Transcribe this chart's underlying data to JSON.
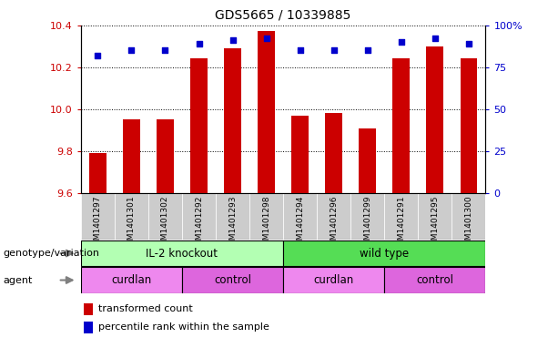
{
  "title": "GDS5665 / 10339885",
  "samples": [
    "GSM1401297",
    "GSM1401301",
    "GSM1401302",
    "GSM1401292",
    "GSM1401293",
    "GSM1401298",
    "GSM1401294",
    "GSM1401296",
    "GSM1401299",
    "GSM1401291",
    "GSM1401295",
    "GSM1401300"
  ],
  "transformed_count": [
    9.79,
    9.95,
    9.95,
    10.24,
    10.29,
    10.37,
    9.97,
    9.98,
    9.91,
    10.24,
    10.3,
    10.24
  ],
  "percentile_rank": [
    82,
    85,
    85,
    89,
    91,
    92,
    85,
    85,
    85,
    90,
    92,
    89
  ],
  "ylim_left": [
    9.6,
    10.4
  ],
  "ylim_right": [
    0,
    100
  ],
  "yticks_left": [
    9.6,
    9.8,
    10.0,
    10.2,
    10.4
  ],
  "yticks_right": [
    0,
    25,
    50,
    75,
    100
  ],
  "bar_color": "#cc0000",
  "dot_color": "#0000cc",
  "bar_base": 9.6,
  "genotype_groups": [
    {
      "label": "IL-2 knockout",
      "start": 0,
      "end": 6,
      "color": "#b3ffb3"
    },
    {
      "label": "wild type",
      "start": 6,
      "end": 12,
      "color": "#55dd55"
    }
  ],
  "agent_groups": [
    {
      "label": "curdlan",
      "start": 0,
      "end": 3,
      "color": "#ee88ee"
    },
    {
      "label": "control",
      "start": 3,
      "end": 6,
      "color": "#dd66dd"
    },
    {
      "label": "curdlan",
      "start": 6,
      "end": 9,
      "color": "#ee88ee"
    },
    {
      "label": "control",
      "start": 9,
      "end": 12,
      "color": "#dd66dd"
    }
  ],
  "legend_bar_label": "transformed count",
  "legend_dot_label": "percentile rank within the sample",
  "genotype_label": "genotype/variation",
  "agent_label": "agent",
  "tick_color_left": "#cc0000",
  "tick_color_right": "#0000cc",
  "sample_col_color": "#cccccc",
  "figsize": [
    6.13,
    3.93
  ],
  "dpi": 100
}
